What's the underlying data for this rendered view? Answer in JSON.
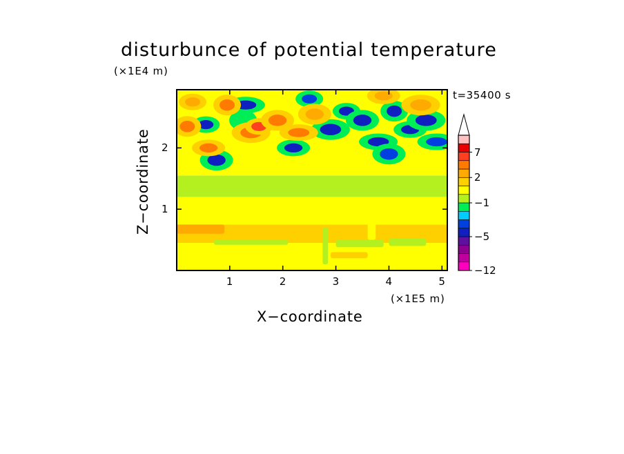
{
  "chart_data": {
    "type": "heatmap",
    "title": "disturbunce of potential temperature",
    "time_label": "t=35400 s",
    "xlabel": "X−coordinate",
    "ylabel": "Z−coordinate",
    "x_unit": "(×1E5 m)",
    "y_unit": "(×1E4 m)",
    "xlim": [
      0,
      5.1
    ],
    "ylim": [
      0,
      2.95
    ],
    "xticks": [
      1,
      2,
      3,
      4,
      5
    ],
    "xtick_labels": [
      "1",
      "2",
      "3",
      "4",
      "5"
    ],
    "yticks": [
      1,
      2
    ],
    "ytick_labels": [
      "1",
      "2"
    ],
    "colorbar": {
      "levels": [
        -12,
        -10,
        -8,
        -6,
        -5,
        -4,
        -3,
        -2,
        -1,
        0,
        1,
        2,
        3,
        5,
        7,
        9,
        11
      ],
      "labeled_levels": [
        7,
        2,
        -1,
        -5,
        -12
      ],
      "labels": [
        "7",
        "2",
        "−1",
        "−5",
        "−12"
      ],
      "colors": [
        "#ff00bf",
        "#c0009e",
        "#900090",
        "#6010a0",
        "#1020c0",
        "#0040e0",
        "#00ccff",
        "#00ee55",
        "#b4f020",
        "#ffff00",
        "#ffd000",
        "#ffaa00",
        "#ff7a00",
        "#ff4020",
        "#e80000",
        "#ffc0c0"
      ],
      "extend": "max"
    },
    "bands": [
      {
        "z": [
          0.0,
          0.45
        ],
        "value": 0.5
      },
      {
        "z": [
          0.45,
          0.75
        ],
        "value": 1.5
      },
      {
        "z": [
          0.75,
          1.2
        ],
        "value": 0.5
      },
      {
        "z": [
          1.2,
          1.55
        ],
        "value": -0.5
      },
      {
        "z": [
          1.55,
          2.95
        ],
        "value": 0.5
      }
    ],
    "features": [
      {
        "x": 0.55,
        "z": 2.38,
        "value": -4.5
      },
      {
        "x": 0.75,
        "z": 1.8,
        "value": -4.5
      },
      {
        "x": 1.3,
        "z": 2.7,
        "value": -5
      },
      {
        "x": 1.25,
        "z": 2.45,
        "value": -2
      },
      {
        "x": 2.2,
        "z": 2.0,
        "value": -4.5
      },
      {
        "x": 2.9,
        "z": 2.3,
        "value": -5
      },
      {
        "x": 3.2,
        "z": 2.6,
        "value": -5
      },
      {
        "x": 3.5,
        "z": 2.45,
        "value": -4.5
      },
      {
        "x": 3.8,
        "z": 2.1,
        "value": -4.5
      },
      {
        "x": 4.1,
        "z": 2.6,
        "value": -5
      },
      {
        "x": 4.4,
        "z": 2.3,
        "value": -5
      },
      {
        "x": 4.7,
        "z": 2.45,
        "value": -4.5
      },
      {
        "x": 2.5,
        "z": 2.8,
        "value": -3.5
      },
      {
        "x": 4.0,
        "z": 1.9,
        "value": -3.5
      },
      {
        "x": 4.9,
        "z": 2.1,
        "value": -3.5
      },
      {
        "x": 0.2,
        "z": 2.35,
        "value": 4
      },
      {
        "x": 0.6,
        "z": 2.0,
        "value": 4
      },
      {
        "x": 1.4,
        "z": 2.25,
        "value": 4
      },
      {
        "x": 1.55,
        "z": 2.35,
        "value": 6
      },
      {
        "x": 1.9,
        "z": 2.45,
        "value": 4
      },
      {
        "x": 2.3,
        "z": 2.25,
        "value": 4
      },
      {
        "x": 0.95,
        "z": 2.7,
        "value": 4
      },
      {
        "x": 3.9,
        "z": 2.85,
        "value": 2.5
      },
      {
        "x": 4.6,
        "z": 2.7,
        "value": 2.5
      },
      {
        "x": 0.3,
        "z": 2.75,
        "value": 2.5
      },
      {
        "x": 2.6,
        "z": 2.55,
        "value": 2.5
      }
    ],
    "strips": [
      {
        "x": [
          0.7,
          2.1
        ],
        "z": [
          0.42,
          0.5
        ],
        "value": -0.5
      },
      {
        "x": [
          3.0,
          3.9
        ],
        "z": [
          0.38,
          0.5
        ],
        "value": -0.5
      },
      {
        "x": [
          4.0,
          4.7
        ],
        "z": [
          0.4,
          0.52
        ],
        "value": -0.5
      },
      {
        "x": [
          0.0,
          0.9
        ],
        "z": [
          0.6,
          0.75
        ],
        "value": 2
      },
      {
        "x": [
          1.4,
          2.7
        ],
        "z": [
          0.5,
          0.62
        ],
        "value": 1.5
      },
      {
        "x": [
          2.9,
          3.6
        ],
        "z": [
          0.2,
          0.3
        ],
        "value": 1.5
      },
      {
        "x": [
          4.5,
          5.0
        ],
        "z": [
          0.55,
          0.65
        ],
        "value": 1.5
      },
      {
        "x": [
          2.75,
          2.85
        ],
        "z": [
          0.1,
          0.7
        ],
        "value": -0.5
      },
      {
        "x": [
          3.6,
          3.75
        ],
        "z": [
          0.5,
          0.95
        ],
        "value": 0.5
      }
    ]
  }
}
